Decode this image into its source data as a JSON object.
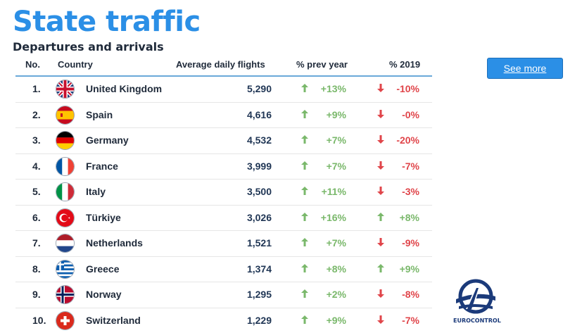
{
  "header": {
    "title": "State traffic",
    "subtitle": "Departures and arrivals"
  },
  "table": {
    "columns": {
      "no": "No.",
      "country": "Country",
      "flights": "Average daily flights",
      "prev_year": "% prev year",
      "y2019": "% 2019"
    },
    "rows": [
      {
        "no": "1.",
        "country": "United Kingdom",
        "flag": "uk-flag-icon",
        "flights": "5,290",
        "prev_year": "+13%",
        "prev_dir": "up",
        "y2019": "-10%",
        "y2019_dir": "down"
      },
      {
        "no": "2.",
        "country": "Spain",
        "flag": "spain-flag-icon",
        "flights": "4,616",
        "prev_year": "+9%",
        "prev_dir": "up",
        "y2019": "-0%",
        "y2019_dir": "down"
      },
      {
        "no": "3.",
        "country": "Germany",
        "flag": "germany-flag-icon",
        "flights": "4,532",
        "prev_year": "+7%",
        "prev_dir": "up",
        "y2019": "-20%",
        "y2019_dir": "down"
      },
      {
        "no": "4.",
        "country": "France",
        "flag": "france-flag-icon",
        "flights": "3,999",
        "prev_year": "+7%",
        "prev_dir": "up",
        "y2019": "-7%",
        "y2019_dir": "down"
      },
      {
        "no": "5.",
        "country": "Italy",
        "flag": "italy-flag-icon",
        "flights": "3,500",
        "prev_year": "+11%",
        "prev_dir": "up",
        "y2019": "-3%",
        "y2019_dir": "down"
      },
      {
        "no": "6.",
        "country": "Türkiye",
        "flag": "turkiye-flag-icon",
        "flights": "3,026",
        "prev_year": "+16%",
        "prev_dir": "up",
        "y2019": "+8%",
        "y2019_dir": "up"
      },
      {
        "no": "7.",
        "country": "Netherlands",
        "flag": "netherlands-flag-icon",
        "flights": "1,521",
        "prev_year": "+7%",
        "prev_dir": "up",
        "y2019": "-9%",
        "y2019_dir": "down"
      },
      {
        "no": "8.",
        "country": "Greece",
        "flag": "greece-flag-icon",
        "flights": "1,374",
        "prev_year": "+8%",
        "prev_dir": "up",
        "y2019": "+9%",
        "y2019_dir": "up"
      },
      {
        "no": "9.",
        "country": "Norway",
        "flag": "norway-flag-icon",
        "flights": "1,295",
        "prev_year": "+2%",
        "prev_dir": "up",
        "y2019": "-8%",
        "y2019_dir": "down"
      },
      {
        "no": "10.",
        "country": "Switzerland",
        "flag": "switzerland-flag-icon",
        "flights": "1,229",
        "prev_year": "+9%",
        "prev_dir": "up",
        "y2019": "-7%",
        "y2019_dir": "down"
      }
    ]
  },
  "see_more": {
    "label": "See more"
  },
  "logo": {
    "text": "EUROCONTROL"
  },
  "colors": {
    "accent": "#2b8fe6",
    "positive": "#7ab86b",
    "negative": "#e0454a"
  }
}
